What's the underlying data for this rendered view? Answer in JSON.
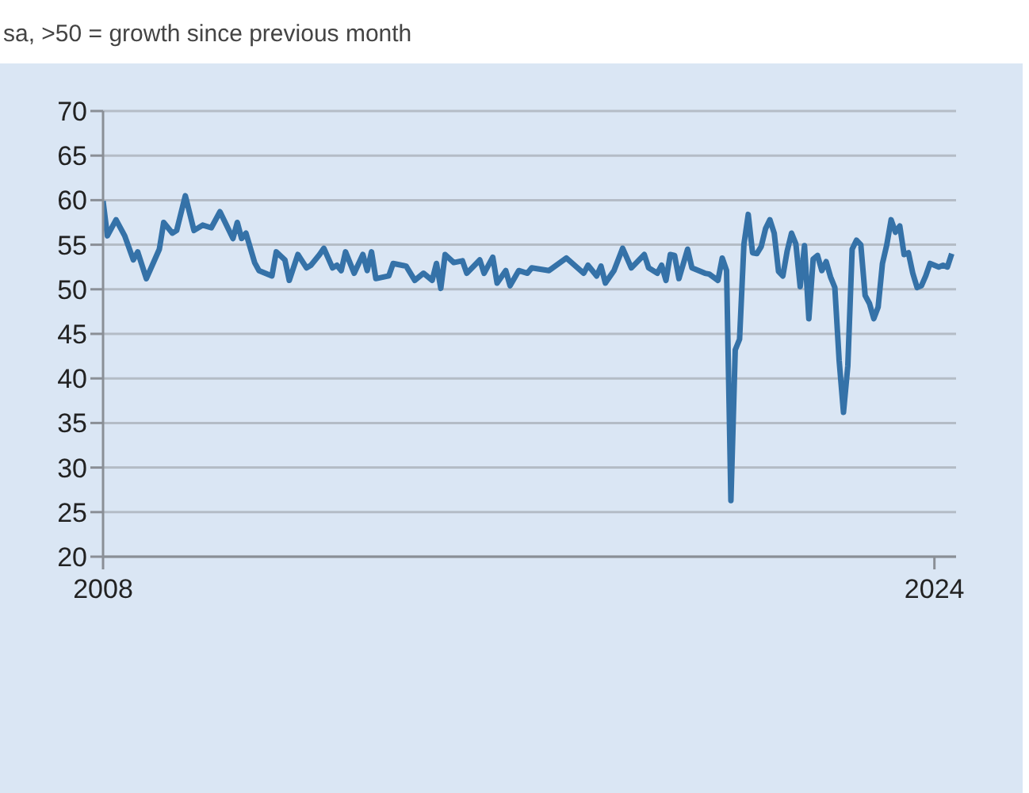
{
  "chart_data": {
    "type": "line",
    "subtitle": "sa, >50 = growth since previous month",
    "x": [
      "2008-01",
      "2008-02",
      "2008-04",
      "2008-06",
      "2008-08",
      "2008-09",
      "2008-11",
      "2009-02",
      "2009-03",
      "2009-05",
      "2009-06",
      "2009-08",
      "2009-10",
      "2009-12",
      "2010-02",
      "2010-04",
      "2010-07",
      "2010-08",
      "2010-09",
      "2010-10",
      "2010-12",
      "2011-01",
      "2011-04",
      "2011-05",
      "2011-07",
      "2011-08",
      "2011-10",
      "2011-12",
      "2012-01",
      "2012-03",
      "2012-04",
      "2012-06",
      "2012-07",
      "2012-08",
      "2012-09",
      "2012-11",
      "2013-01",
      "2013-02",
      "2013-03",
      "2013-04",
      "2013-07",
      "2013-08",
      "2013-11",
      "2014-01",
      "2014-03",
      "2014-05",
      "2014-06",
      "2014-07",
      "2014-08",
      "2014-10",
      "2014-12",
      "2015-01",
      "2015-04",
      "2015-05",
      "2015-07",
      "2015-08",
      "2015-10",
      "2015-11",
      "2016-01",
      "2016-03",
      "2016-04",
      "2016-08",
      "2016-12",
      "2017-04",
      "2017-05",
      "2017-07",
      "2017-08",
      "2017-09",
      "2017-11",
      "2018-01",
      "2018-03",
      "2018-06",
      "2018-07",
      "2018-09",
      "2018-10",
      "2018-11",
      "2018-12",
      "2019-01",
      "2019-02",
      "2019-04",
      "2019-05",
      "2019-08",
      "2019-09",
      "2019-11",
      "2019-12",
      "2020-01",
      "2020-02",
      "2020-03",
      "2020-04",
      "2020-05",
      "2020-06",
      "2020-07",
      "2020-08",
      "2020-09",
      "2020-10",
      "2020-11",
      "2020-12",
      "2021-01",
      "2021-02",
      "2021-03",
      "2021-04",
      "2021-05",
      "2021-06",
      "2021-07",
      "2021-08",
      "2021-09",
      "2021-10",
      "2021-11",
      "2021-12",
      "2022-01",
      "2022-02",
      "2022-03",
      "2022-04",
      "2022-05",
      "2022-06",
      "2022-07",
      "2022-08",
      "2022-09",
      "2022-10",
      "2022-11",
      "2022-12",
      "2023-01",
      "2023-02",
      "2023-03",
      "2023-04",
      "2023-05",
      "2023-06",
      "2023-07",
      "2023-08",
      "2023-09",
      "2023-10",
      "2023-11",
      "2023-12",
      "2024-01",
      "2024-02",
      "2024-03",
      "2024-04",
      "2024-05"
    ],
    "series": [
      {
        "color": "#3572a8",
        "values": [
          59.9,
          56.0,
          57.8,
          56.0,
          53.3,
          54.2,
          51.2,
          54.5,
          57.5,
          56.3,
          56.6,
          60.5,
          56.6,
          57.2,
          56.9,
          58.7,
          55.7,
          57.5,
          55.7,
          56.3,
          53.0,
          52.1,
          51.5,
          54.2,
          53.3,
          51.0,
          53.9,
          52.4,
          52.7,
          53.9,
          54.6,
          52.4,
          52.7,
          52.1,
          54.2,
          51.8,
          53.9,
          52.1,
          54.2,
          51.2,
          51.5,
          52.9,
          52.6,
          51.0,
          51.8,
          51.0,
          52.9,
          50.1,
          53.9,
          53.0,
          53.2,
          51.8,
          53.3,
          51.8,
          53.6,
          50.7,
          52.1,
          50.4,
          52.1,
          51.8,
          52.4,
          52.1,
          53.5,
          51.8,
          52.7,
          51.5,
          52.6,
          50.7,
          52.1,
          54.6,
          52.4,
          53.9,
          52.4,
          51.8,
          52.7,
          51.0,
          53.9,
          53.8,
          51.2,
          54.5,
          52.4,
          51.8,
          51.7,
          51.0,
          53.5,
          52.1,
          26.3,
          43.2,
          44.4,
          55.0,
          58.4,
          54.1,
          54.0,
          54.8,
          56.8,
          57.8,
          56.3,
          52.0,
          51.5,
          54.3,
          56.3,
          55.1,
          50.3,
          54.9,
          46.7,
          53.4,
          53.8,
          52.1,
          53.1,
          51.4,
          50.2,
          42.0,
          36.2,
          41.4,
          54.5,
          55.5,
          55.0,
          49.3,
          48.4,
          46.7,
          48.0,
          52.9,
          55.0,
          57.8,
          56.4,
          57.1,
          53.9,
          54.1,
          51.8,
          50.2,
          50.4,
          51.5,
          52.9,
          52.7,
          52.5,
          52.7,
          52.5,
          54.0
        ]
      }
    ],
    "xlim": [
      "2008-01",
      "2024-06"
    ],
    "xticks": [
      "2008",
      "2024"
    ],
    "ylim": [
      20,
      70
    ],
    "yticks": [
      20,
      25,
      30,
      35,
      40,
      45,
      50,
      55,
      60,
      65,
      70
    ],
    "grid": "y",
    "legend": false,
    "marker": "none",
    "line_style": "solid"
  }
}
